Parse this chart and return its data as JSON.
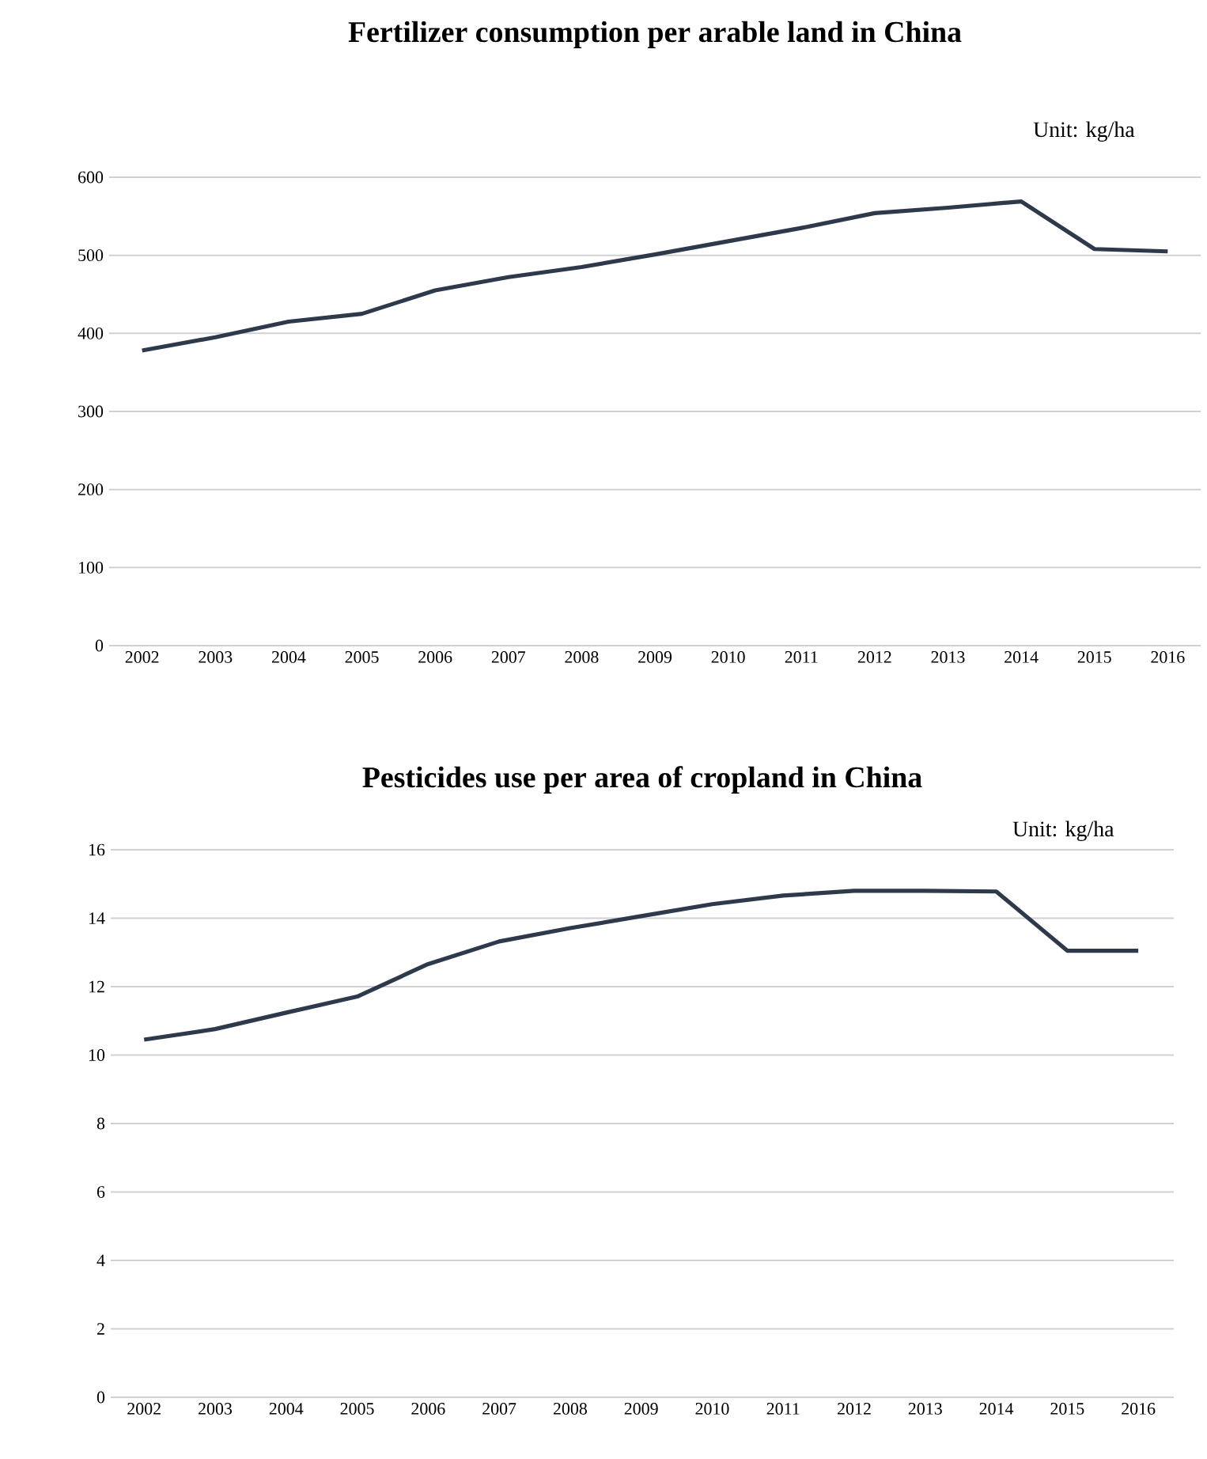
{
  "chart_data": [
    {
      "type": "line",
      "title": "Fertilizer consumption per arable land in China",
      "annotations": [
        "Unit: kg/ha"
      ],
      "categories": [
        "2002",
        "2003",
        "2004",
        "2005",
        "2006",
        "2007",
        "2008",
        "2009",
        "2010",
        "2011",
        "2012",
        "2013",
        "2014",
        "2015",
        "2016"
      ],
      "values": [
        378,
        395,
        415,
        425,
        455,
        472,
        485,
        501,
        518,
        535,
        554,
        561,
        569,
        508,
        505
      ],
      "color": "#2e3a4b",
      "ylim": [
        0,
        600
      ],
      "yticks": [
        0,
        100,
        200,
        300,
        400,
        500,
        600
      ],
      "grid": "y"
    },
    {
      "type": "line",
      "title": "Pesticides use per area of cropland in China",
      "annotations": [
        "Unit: kg/ha"
      ],
      "categories": [
        "2002",
        "2003",
        "2004",
        "2005",
        "2006",
        "2007",
        "2008",
        "2009",
        "2010",
        "2011",
        "2012",
        "2013",
        "2014",
        "2015",
        "2016"
      ],
      "values": [
        10.45,
        10.76,
        11.24,
        11.71,
        12.66,
        13.32,
        13.71,
        14.06,
        14.41,
        14.66,
        14.8,
        14.8,
        14.78,
        13.05,
        13.05
      ],
      "color": "#2e3a4b",
      "ylim": [
        0,
        16
      ],
      "yticks": [
        0,
        2,
        4,
        6,
        8,
        10,
        12,
        14,
        16
      ],
      "grid": "y"
    }
  ]
}
